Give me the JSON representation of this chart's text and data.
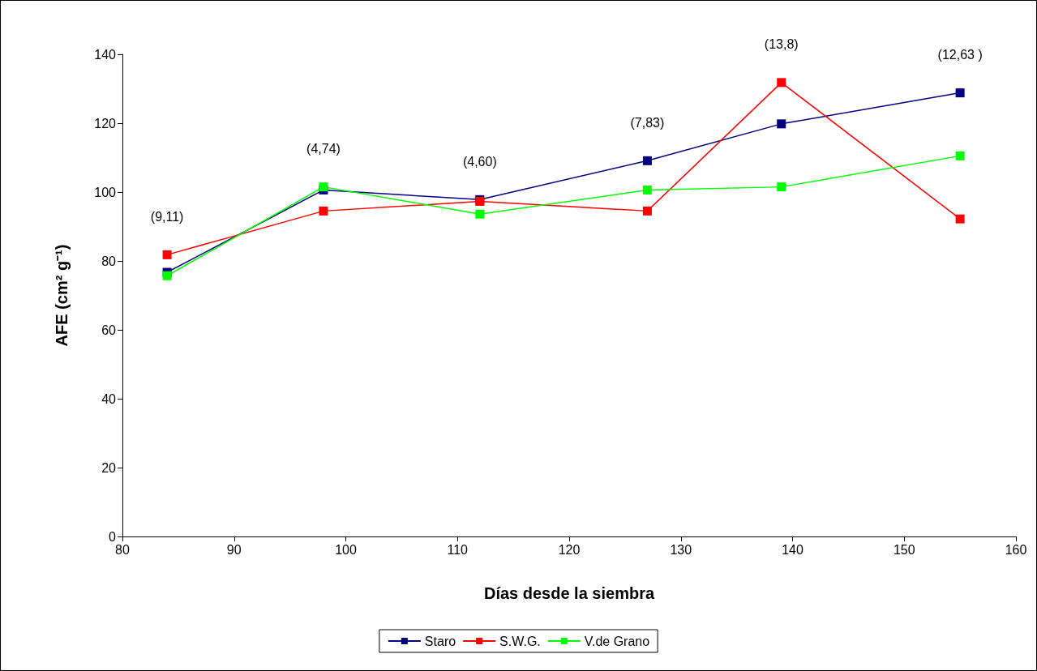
{
  "chart_data": {
    "type": "line",
    "xlabel": "Días desde la siembra",
    "ylabel": "AFE (cm² g⁻¹)",
    "x": [
      84,
      98,
      112,
      127,
      139,
      155
    ],
    "series": [
      {
        "name": "Staro",
        "color": "#000080",
        "values": [
          76.7,
          100.6,
          97.8,
          109.1,
          119.8,
          128.8
        ]
      },
      {
        "name": "S.W.G.",
        "color": "#ff0000",
        "values": [
          81.8,
          94.5,
          97.3,
          94.5,
          131.8,
          92.2
        ]
      },
      {
        "name": "V.de Grano",
        "color": "#00ff00",
        "values": [
          75.7,
          101.5,
          93.6,
          100.6,
          101.5,
          110.5
        ]
      }
    ],
    "xlim": [
      80,
      160
    ],
    "xticks": [
      80,
      90,
      100,
      110,
      120,
      130,
      140,
      150,
      160
    ],
    "ylim": [
      0,
      140
    ],
    "yticks": [
      0,
      20,
      40,
      60,
      80,
      100,
      120,
      140
    ],
    "annotations": [
      "(9,11)",
      "(4,74)",
      "(4,60)",
      "(7,83)",
      "(13,8)",
      "(12,63 )"
    ],
    "grid": false,
    "legend": "bottom",
    "marker": "square",
    "line_style": "solid"
  }
}
